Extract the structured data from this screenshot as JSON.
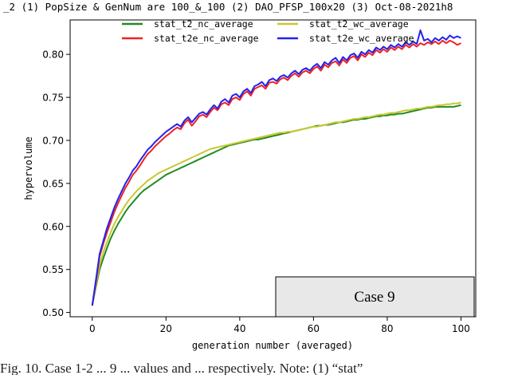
{
  "figure": {
    "header_text": "_2 (1) PopSize & GenNum are 100_&_100 (2) DAO_PFSP_100x20 (3) Oct-08-2021h8",
    "case_label": "Case 9",
    "caption": "Fig. 10. Case 1-2 ... 9 ... values and ... respectively. Note: (1) “stat”"
  },
  "chart_data": {
    "type": "line",
    "xlabel": "generation number (averaged)",
    "ylabel": "hypervolume",
    "xlim": [
      -6,
      104
    ],
    "ylim": [
      0.495,
      0.84
    ],
    "x_ticks": [
      "0",
      "20",
      "40",
      "60",
      "80",
      "100"
    ],
    "y_ticks": [
      "0.50",
      "0.55",
      "0.60",
      "0.65",
      "0.70",
      "0.75",
      "0.80"
    ],
    "grid": false,
    "legend_placement": "top-center",
    "x": [
      0,
      1,
      2,
      3,
      4,
      5,
      6,
      7,
      8,
      9,
      10,
      11,
      12,
      13,
      14,
      15,
      16,
      17,
      18,
      19,
      20,
      21,
      22,
      23,
      24,
      25,
      26,
      27,
      28,
      29,
      30,
      31,
      32,
      33,
      34,
      35,
      36,
      37,
      38,
      39,
      40,
      41,
      42,
      43,
      44,
      45,
      46,
      47,
      48,
      49,
      50,
      51,
      52,
      53,
      54,
      55,
      56,
      57,
      58,
      59,
      60,
      61,
      62,
      63,
      64,
      65,
      66,
      67,
      68,
      69,
      70,
      71,
      72,
      73,
      74,
      75,
      76,
      77,
      78,
      79,
      80,
      81,
      82,
      83,
      84,
      85,
      86,
      87,
      88,
      89,
      90,
      91,
      92,
      93,
      94,
      95,
      96,
      97,
      98,
      99,
      100
    ],
    "series": [
      {
        "name": "stat_t2_nc_average",
        "color": "#228b22",
        "values": [
          0.508,
          0.53,
          0.55,
          0.563,
          0.575,
          0.586,
          0.595,
          0.603,
          0.61,
          0.617,
          0.623,
          0.628,
          0.633,
          0.638,
          0.642,
          0.645,
          0.648,
          0.651,
          0.654,
          0.657,
          0.66,
          0.662,
          0.664,
          0.666,
          0.668,
          0.67,
          0.672,
          0.674,
          0.676,
          0.678,
          0.68,
          0.682,
          0.684,
          0.686,
          0.688,
          0.69,
          0.692,
          0.694,
          0.695,
          0.696,
          0.697,
          0.698,
          0.699,
          0.7,
          0.701,
          0.701,
          0.702,
          0.703,
          0.704,
          0.705,
          0.706,
          0.707,
          0.708,
          0.709,
          0.71,
          0.711,
          0.712,
          0.713,
          0.714,
          0.715,
          0.716,
          0.717,
          0.717,
          0.718,
          0.718,
          0.719,
          0.72,
          0.721,
          0.721,
          0.722,
          0.723,
          0.724,
          0.724,
          0.725,
          0.725,
          0.726,
          0.727,
          0.728,
          0.728,
          0.729,
          0.729,
          0.73,
          0.73,
          0.731,
          0.731,
          0.732,
          0.733,
          0.734,
          0.735,
          0.736,
          0.737,
          0.738,
          0.738,
          0.739,
          0.739,
          0.739,
          0.739,
          0.739,
          0.739,
          0.74,
          0.741
        ]
      },
      {
        "name": "stat_t2e_nc_average",
        "color": "#ee2222",
        "values": [
          0.508,
          0.535,
          0.565,
          0.58,
          0.593,
          0.605,
          0.617,
          0.627,
          0.636,
          0.645,
          0.652,
          0.66,
          0.665,
          0.671,
          0.678,
          0.684,
          0.688,
          0.693,
          0.697,
          0.701,
          0.705,
          0.708,
          0.712,
          0.715,
          0.713,
          0.72,
          0.724,
          0.717,
          0.722,
          0.728,
          0.73,
          0.727,
          0.733,
          0.738,
          0.735,
          0.742,
          0.744,
          0.741,
          0.748,
          0.75,
          0.747,
          0.754,
          0.757,
          0.752,
          0.76,
          0.762,
          0.764,
          0.76,
          0.767,
          0.768,
          0.766,
          0.771,
          0.773,
          0.77,
          0.775,
          0.778,
          0.774,
          0.779,
          0.781,
          0.778,
          0.783,
          0.786,
          0.781,
          0.788,
          0.785,
          0.79,
          0.792,
          0.787,
          0.794,
          0.79,
          0.796,
          0.798,
          0.793,
          0.8,
          0.797,
          0.802,
          0.799,
          0.805,
          0.802,
          0.806,
          0.803,
          0.808,
          0.805,
          0.809,
          0.806,
          0.811,
          0.808,
          0.812,
          0.809,
          0.813,
          0.811,
          0.814,
          0.812,
          0.815,
          0.812,
          0.816,
          0.813,
          0.816,
          0.814,
          0.811,
          0.813
        ]
      },
      {
        "name": "stat_t2_wc_average",
        "color": "#c8c832",
        "values": [
          0.508,
          0.532,
          0.555,
          0.57,
          0.582,
          0.593,
          0.603,
          0.611,
          0.618,
          0.625,
          0.631,
          0.636,
          0.641,
          0.645,
          0.649,
          0.653,
          0.656,
          0.659,
          0.662,
          0.664,
          0.666,
          0.668,
          0.67,
          0.672,
          0.674,
          0.676,
          0.678,
          0.68,
          0.682,
          0.684,
          0.686,
          0.688,
          0.69,
          0.691,
          0.692,
          0.693,
          0.694,
          0.695,
          0.696,
          0.697,
          0.698,
          0.699,
          0.7,
          0.701,
          0.702,
          0.703,
          0.704,
          0.705,
          0.706,
          0.707,
          0.708,
          0.709,
          0.709,
          0.71,
          0.71,
          0.711,
          0.712,
          0.713,
          0.714,
          0.715,
          0.716,
          0.716,
          0.717,
          0.718,
          0.719,
          0.72,
          0.721,
          0.721,
          0.722,
          0.723,
          0.724,
          0.725,
          0.725,
          0.726,
          0.727,
          0.727,
          0.728,
          0.729,
          0.73,
          0.73,
          0.731,
          0.732,
          0.732,
          0.733,
          0.734,
          0.735,
          0.735,
          0.736,
          0.737,
          0.737,
          0.738,
          0.739,
          0.739,
          0.74,
          0.741,
          0.741,
          0.742,
          0.742,
          0.743,
          0.743,
          0.744
        ]
      },
      {
        "name": "stat_t2e_wc_average",
        "color": "#2222ee",
        "values": [
          0.508,
          0.538,
          0.568,
          0.583,
          0.598,
          0.61,
          0.622,
          0.632,
          0.641,
          0.65,
          0.657,
          0.665,
          0.67,
          0.677,
          0.683,
          0.689,
          0.693,
          0.698,
          0.702,
          0.706,
          0.71,
          0.713,
          0.716,
          0.719,
          0.716,
          0.723,
          0.727,
          0.721,
          0.726,
          0.731,
          0.733,
          0.73,
          0.736,
          0.741,
          0.737,
          0.745,
          0.748,
          0.744,
          0.752,
          0.754,
          0.75,
          0.757,
          0.76,
          0.755,
          0.763,
          0.765,
          0.768,
          0.763,
          0.77,
          0.772,
          0.769,
          0.774,
          0.776,
          0.773,
          0.778,
          0.781,
          0.777,
          0.782,
          0.784,
          0.781,
          0.786,
          0.789,
          0.784,
          0.791,
          0.788,
          0.793,
          0.796,
          0.79,
          0.797,
          0.793,
          0.799,
          0.801,
          0.796,
          0.803,
          0.8,
          0.805,
          0.802,
          0.808,
          0.805,
          0.809,
          0.806,
          0.811,
          0.808,
          0.812,
          0.809,
          0.814,
          0.811,
          0.815,
          0.812,
          0.828,
          0.816,
          0.818,
          0.814,
          0.819,
          0.816,
          0.82,
          0.817,
          0.822,
          0.819,
          0.821,
          0.819
        ]
      }
    ]
  }
}
